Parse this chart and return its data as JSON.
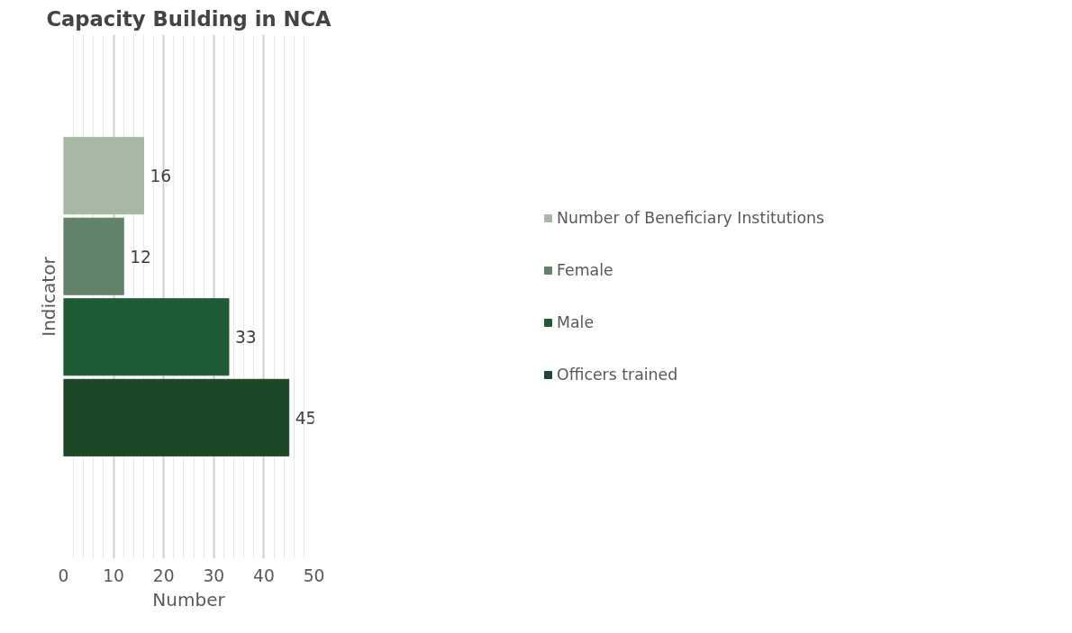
{
  "chart_data": {
    "type": "bar",
    "orientation": "horizontal",
    "title": "Capacity Building in NCA",
    "xlabel": "Number",
    "ylabel": "Indicator",
    "categories": [
      null
    ],
    "series": [
      {
        "name": "Number of Beneficiary Institutions",
        "color": "#a7b9a5",
        "values": [
          16
        ]
      },
      {
        "name": "Female",
        "color": "#63826a",
        "values": [
          12
        ]
      },
      {
        "name": "Male",
        "color": "#1f5b34",
        "values": [
          33
        ]
      },
      {
        "name": "Officers trained",
        "color": "#1d4828",
        "values": [
          45
        ]
      }
    ],
    "xlim": [
      0,
      50
    ],
    "xticks": [
      0,
      {
        "value": 2,
        "label": null
      },
      {
        "value": 4,
        "label": null
      },
      {
        "value": 6,
        "label": null
      },
      {
        "value": 8,
        "label": null
      },
      10,
      {
        "value": 12,
        "label": null
      },
      {
        "value": 14,
        "label": null
      },
      {
        "value": 16,
        "label": null
      },
      {
        "value": 18,
        "label": null
      },
      20,
      {
        "value": 22,
        "label": null
      },
      {
        "value": 24,
        "label": null
      },
      {
        "value": 26,
        "label": null
      },
      {
        "value": 28,
        "label": null
      },
      30,
      {
        "value": 32,
        "label": null
      },
      {
        "value": 34,
        "label": null
      },
      {
        "value": 36,
        "label": null
      },
      {
        "value": 38,
        "label": null
      },
      40,
      {
        "value": 42,
        "label": null
      },
      {
        "value": 44,
        "label": null
      },
      {
        "value": 46,
        "label": null
      },
      {
        "value": 48,
        "label": null
      },
      50
    ],
    "grid": "x",
    "legend": "right",
    "data_labels": true
  }
}
